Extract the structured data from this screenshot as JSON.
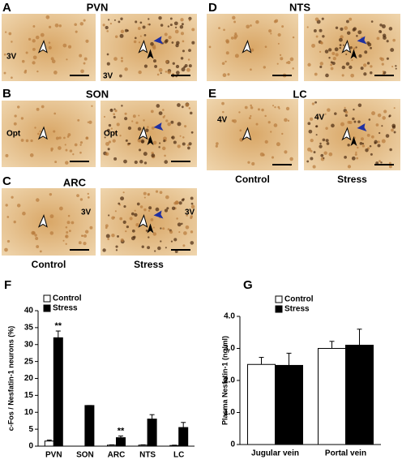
{
  "micrographs": [
    {
      "panel": "A",
      "region": "PVN",
      "images": [
        {
          "labels": [
            "3V"
          ]
        },
        {
          "labels": [
            "3V"
          ]
        }
      ]
    },
    {
      "panel": "B",
      "region": "SON",
      "images": [
        {
          "labels": [
            "Opt"
          ]
        },
        {
          "labels": [
            "Opt"
          ]
        }
      ]
    },
    {
      "panel": "C",
      "region": "ARC",
      "images": [
        {
          "labels": [
            "3V"
          ]
        },
        {
          "labels": [
            "3V"
          ]
        }
      ],
      "conditions": [
        "Control",
        "Stress"
      ]
    },
    {
      "panel": "D",
      "region": "NTS",
      "images": [
        {
          "labels": []
        },
        {
          "labels": []
        }
      ]
    },
    {
      "panel": "E",
      "region": "LC",
      "images": [
        {
          "labels": [
            "4V"
          ]
        },
        {
          "labels": [
            "4V"
          ]
        }
      ],
      "conditions": [
        "Control",
        "Stress"
      ]
    }
  ],
  "chart_data": [
    {
      "type": "bar",
      "panel": "F",
      "y_label": "c-Fos / Nesfatin-1 neurons (%)",
      "categories": [
        "PVN",
        "SON",
        "ARC",
        "NTS",
        "LC"
      ],
      "series": [
        {
          "name": "Control",
          "color": "#ffffff",
          "values": [
            1.5,
            0,
            0.3,
            0.3,
            0.2
          ],
          "errors": [
            0.3,
            0,
            0.1,
            0.1,
            0.1
          ]
        },
        {
          "name": "Stress",
          "color": "#000000",
          "values": [
            32,
            12,
            2.5,
            8,
            5.5
          ],
          "errors": [
            2,
            0,
            0.5,
            1.3,
            1.5
          ]
        }
      ],
      "annotations": [
        {
          "category": 0,
          "text": "**"
        },
        {
          "category": 2,
          "text": "**"
        }
      ],
      "ylim": [
        0,
        40
      ],
      "yticks": [
        0,
        5,
        10,
        15,
        20,
        25,
        30,
        35,
        40
      ],
      "legend": "upper left"
    },
    {
      "type": "bar",
      "panel": "G",
      "y_label": "Plasma Nesfatin-1 (ng/ml)",
      "categories": [
        "Jugular vein",
        "Portal vein"
      ],
      "series": [
        {
          "name": "Control",
          "color": "#ffffff",
          "values": [
            2.5,
            3.0
          ],
          "errors": [
            0.22,
            0.22
          ]
        },
        {
          "name": "Stress",
          "color": "#000000",
          "values": [
            2.47,
            3.1
          ],
          "errors": [
            0.38,
            0.5
          ]
        }
      ],
      "ylim": [
        0,
        4
      ],
      "yticks": [
        0,
        {
          "value": 1,
          "label": "1.0"
        },
        {
          "value": 2,
          "label": "2.0"
        },
        {
          "value": 3,
          "label": "3.0"
        },
        {
          "value": 4,
          "label": "4.0"
        }
      ],
      "legend": "upper left"
    }
  ]
}
